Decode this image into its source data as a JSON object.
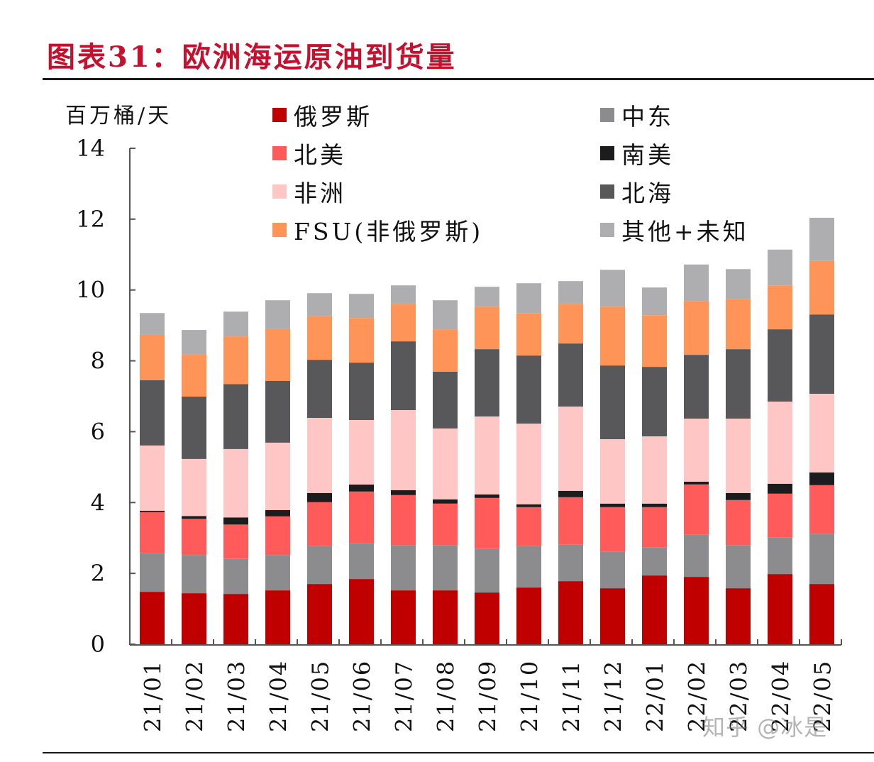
{
  "title": "图表31：欧洲海运原油到货量",
  "chart_data": {
    "type": "bar",
    "stacked": true,
    "title": "图表31：欧洲海运原油到货量",
    "ylabel": "百万桶/天",
    "xlabel": "",
    "ylim": [
      0,
      14
    ],
    "yticks": [
      0,
      2,
      4,
      6,
      8,
      10,
      12,
      14
    ],
    "grid": false,
    "legend_position": "top",
    "categories": [
      "21/01",
      "21/02",
      "21/03",
      "21/04",
      "21/05",
      "21/06",
      "21/07",
      "21/08",
      "21/09",
      "21/10",
      "21/11",
      "21/12",
      "22/01",
      "22/02",
      "22/03",
      "22/04",
      "22/05"
    ],
    "series": [
      {
        "name": "俄罗斯",
        "color": "#c00000",
        "values": [
          1.48,
          1.44,
          1.42,
          1.52,
          1.7,
          1.84,
          1.52,
          1.52,
          1.46,
          1.6,
          1.78,
          1.58,
          1.94,
          1.9,
          1.58,
          1.98,
          1.7
        ]
      },
      {
        "name": "中东",
        "color": "#8c8c8e",
        "values": [
          1.1,
          1.08,
          1.0,
          1.0,
          1.08,
          1.02,
          1.28,
          1.28,
          1.24,
          1.18,
          1.04,
          1.04,
          0.8,
          1.2,
          1.22,
          1.04,
          1.42
        ]
      },
      {
        "name": "北美",
        "color": "#ff5b5b",
        "values": [
          1.15,
          1.02,
          0.96,
          1.09,
          1.23,
          1.45,
          1.41,
          1.17,
          1.43,
          1.09,
          1.33,
          1.25,
          1.13,
          1.41,
          1.27,
          1.23,
          1.37
        ]
      },
      {
        "name": "南美",
        "color": "#1c1c1e",
        "values": [
          0.04,
          0.08,
          0.2,
          0.18,
          0.26,
          0.2,
          0.14,
          0.12,
          0.1,
          0.08,
          0.18,
          0.1,
          0.1,
          0.08,
          0.2,
          0.28,
          0.36
        ]
      },
      {
        "name": "非洲",
        "color": "#ffc6c6",
        "values": [
          1.84,
          1.61,
          1.93,
          1.9,
          2.12,
          1.82,
          2.26,
          2.0,
          2.2,
          2.28,
          2.38,
          1.82,
          1.9,
          1.78,
          2.1,
          2.32,
          2.22
        ]
      },
      {
        "name": "北海",
        "color": "#58585b",
        "values": [
          1.84,
          1.76,
          1.83,
          1.74,
          1.64,
          1.62,
          1.94,
          1.6,
          1.9,
          1.92,
          1.78,
          2.08,
          1.96,
          1.8,
          1.96,
          2.04,
          2.24
        ]
      },
      {
        "name": "FSU(非俄罗斯)",
        "color": "#ff9458",
        "values": [
          1.3,
          1.2,
          1.35,
          1.48,
          1.24,
          1.26,
          1.06,
          1.2,
          1.2,
          1.2,
          1.12,
          1.66,
          1.46,
          1.52,
          1.42,
          1.24,
          1.51
        ]
      },
      {
        "name": "其他+未知",
        "color": "#aeaeb0",
        "values": [
          0.6,
          0.68,
          0.7,
          0.8,
          0.64,
          0.68,
          0.52,
          0.82,
          0.56,
          0.84,
          0.64,
          1.04,
          0.78,
          1.03,
          0.84,
          1.01,
          1.22
        ]
      }
    ],
    "legend_order": [
      "俄罗斯",
      "北美",
      "非洲",
      "FSU(非俄罗斯)",
      "中东",
      "南美",
      "北海",
      "其他+未知"
    ]
  },
  "watermark": "知乎 @冰是"
}
